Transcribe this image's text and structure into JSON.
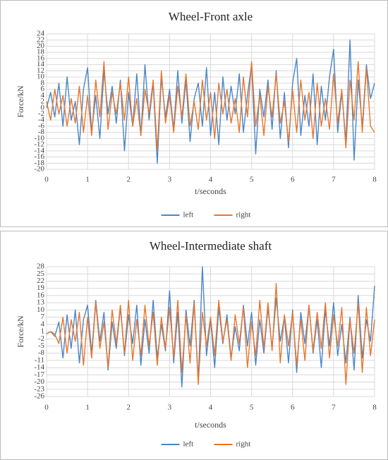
{
  "chart_data": [
    {
      "type": "line",
      "title": "Wheel-Front axle",
      "x_label": "t/seconds",
      "y_label": "Force/kN",
      "x": [
        0,
        0.1,
        0.2,
        0.3,
        0.4,
        0.5,
        0.6,
        0.7,
        0.8,
        0.9,
        1,
        1.1,
        1.2,
        1.3,
        1.4,
        1.5,
        1.6,
        1.7,
        1.8,
        1.9,
        2,
        2.1,
        2.2,
        2.3,
        2.4,
        2.5,
        2.6,
        2.7,
        2.8,
        2.9,
        3,
        3.1,
        3.2,
        3.3,
        3.4,
        3.5,
        3.6,
        3.7,
        3.8,
        3.9,
        4,
        4.1,
        4.2,
        4.3,
        4.4,
        4.5,
        4.6,
        4.7,
        4.8,
        4.9,
        5,
        5.1,
        5.2,
        5.3,
        5.4,
        5.5,
        5.6,
        5.7,
        5.8,
        5.9,
        6,
        6.1,
        6.2,
        6.3,
        6.4,
        6.5,
        6.6,
        6.7,
        6.8,
        6.9,
        7,
        7.1,
        7.2,
        7.3,
        7.4,
        7.5,
        7.6,
        7.7,
        7.8,
        7.9,
        8
      ],
      "series": [
        {
          "name": "left",
          "color": "#4a86c8",
          "values": [
            0,
            5,
            -3,
            8,
            -6,
            10,
            -4,
            2,
            -12,
            6,
            13,
            -8,
            4,
            -10,
            12,
            -2,
            7,
            -5,
            9,
            -14,
            5,
            -6,
            11,
            -9,
            14,
            -4,
            8,
            -18,
            10,
            -3,
            6,
            -7,
            12,
            -5,
            9,
            -11,
            3,
            8,
            -6,
            13,
            -9,
            5,
            -12,
            10,
            -4,
            7,
            -2,
            11,
            -8,
            4,
            14,
            -15,
            6,
            -3,
            9,
            -7,
            12,
            -10,
            5,
            -13,
            8,
            16,
            -9,
            4,
            -6,
            11,
            -12,
            7,
            -4,
            10,
            19,
            -8,
            5,
            -11,
            22,
            -17,
            9,
            -6,
            14,
            3,
            8
          ]
        },
        {
          "name": "right",
          "color": "#e8762d",
          "values": [
            2,
            -4,
            6,
            -2,
            4,
            -6,
            3,
            -5,
            7,
            -8,
            4,
            -9,
            9,
            -3,
            15,
            -7,
            5,
            -2,
            8,
            -4,
            10,
            -6,
            3,
            -9,
            6,
            -2,
            9,
            -14,
            12,
            -5,
            4,
            -8,
            7,
            -3,
            11,
            -6,
            2,
            -7,
            9,
            -4,
            5,
            -10,
            8,
            -2,
            6,
            -5,
            3,
            -8,
            10,
            -3,
            15,
            -6,
            4,
            -9,
            7,
            -3,
            11,
            -5,
            2,
            -11,
            6,
            -8,
            9,
            -4,
            5,
            -10,
            8,
            -6,
            3,
            -7,
            11,
            -5,
            6,
            -13,
            9,
            -4,
            15,
            -8,
            13,
            -6,
            -8
          ]
        }
      ],
      "xlim": [
        0,
        8
      ],
      "xticks": [
        0,
        1,
        2,
        3,
        4,
        5,
        6,
        7,
        8
      ],
      "ylim": [
        -20,
        24
      ],
      "yticks": [
        -20,
        -18,
        -16,
        -14,
        -12,
        -10,
        -8,
        -6,
        -4,
        -2,
        0,
        2,
        4,
        6,
        8,
        10,
        12,
        14,
        16,
        18,
        20,
        22,
        24
      ],
      "grid": true,
      "legend": "bottom"
    },
    {
      "type": "line",
      "title": "Wheel-Intermediate shaft",
      "x_label": "t/seconds",
      "y_label": "Force/kN",
      "x": [
        0,
        0.1,
        0.2,
        0.3,
        0.4,
        0.5,
        0.6,
        0.7,
        0.8,
        0.9,
        1,
        1.1,
        1.2,
        1.3,
        1.4,
        1.5,
        1.6,
        1.7,
        1.8,
        1.9,
        2,
        2.1,
        2.2,
        2.3,
        2.4,
        2.5,
        2.6,
        2.7,
        2.8,
        2.9,
        3,
        3.1,
        3.2,
        3.3,
        3.4,
        3.5,
        3.6,
        3.7,
        3.8,
        3.9,
        4,
        4.1,
        4.2,
        4.3,
        4.4,
        4.5,
        4.6,
        4.7,
        4.8,
        4.9,
        5,
        5.1,
        5.2,
        5.3,
        5.4,
        5.5,
        5.6,
        5.7,
        5.8,
        5.9,
        6,
        6.1,
        6.2,
        6.3,
        6.4,
        6.5,
        6.6,
        6.7,
        6.8,
        6.9,
        7,
        7.1,
        7.2,
        7.3,
        7.4,
        7.5,
        7.6,
        7.7,
        7.8,
        7.9,
        8
      ],
      "series": [
        {
          "name": "left",
          "color": "#4a86c8",
          "values": [
            0,
            1,
            -1,
            5,
            -10,
            8,
            -6,
            10,
            -12,
            6,
            12,
            -8,
            14,
            -3,
            9,
            -15,
            5,
            -6,
            11,
            -9,
            8,
            -4,
            12,
            -13,
            6,
            -8,
            14,
            -10,
            4,
            -7,
            18,
            -12,
            9,
            -22,
            10,
            -5,
            14,
            -20,
            28,
            -9,
            6,
            -14,
            11,
            -4,
            8,
            -10,
            3,
            -7,
            12,
            -5,
            9,
            -13,
            6,
            -8,
            11,
            -6,
            15,
            -3,
            7,
            -12,
            10,
            -16,
            9,
            -4,
            12,
            -8,
            6,
            -14,
            10,
            -5,
            13,
            -9,
            4,
            -12,
            7,
            -15,
            16,
            -10,
            6,
            -3,
            20
          ]
        },
        {
          "name": "right",
          "color": "#e8762d",
          "values": [
            0,
            1,
            0,
            -4,
            7,
            -8,
            6,
            -3,
            9,
            -13,
            7,
            -10,
            13,
            -6,
            5,
            -14,
            10,
            -4,
            12,
            -8,
            14,
            -11,
            6,
            -9,
            12,
            -5,
            9,
            -13,
            7,
            -6,
            11,
            -10,
            14,
            -16,
            8,
            -12,
            13,
            -21,
            9,
            -5,
            7,
            -9,
            14,
            -3,
            6,
            -11,
            8,
            -4,
            11,
            -14,
            5,
            -9,
            14,
            -6,
            13,
            -7,
            21,
            -12,
            8,
            -5,
            9,
            -13,
            6,
            -11,
            12,
            -7,
            9,
            -6,
            13,
            -10,
            8,
            -5,
            11,
            -21,
            6,
            -8,
            13,
            -16,
            11,
            -9,
            6
          ]
        }
      ],
      "xlim": [
        0,
        8
      ],
      "xticks": [
        0,
        1,
        2,
        3,
        4,
        5,
        6,
        7,
        8
      ],
      "ylim": [
        -26,
        28
      ],
      "yticks": [
        -26,
        -23,
        -20,
        -17,
        -14,
        -11,
        -8,
        -5,
        -2,
        1,
        4,
        7,
        10,
        13,
        16,
        19,
        22,
        25,
        28
      ],
      "grid": true,
      "legend": "bottom"
    }
  ]
}
